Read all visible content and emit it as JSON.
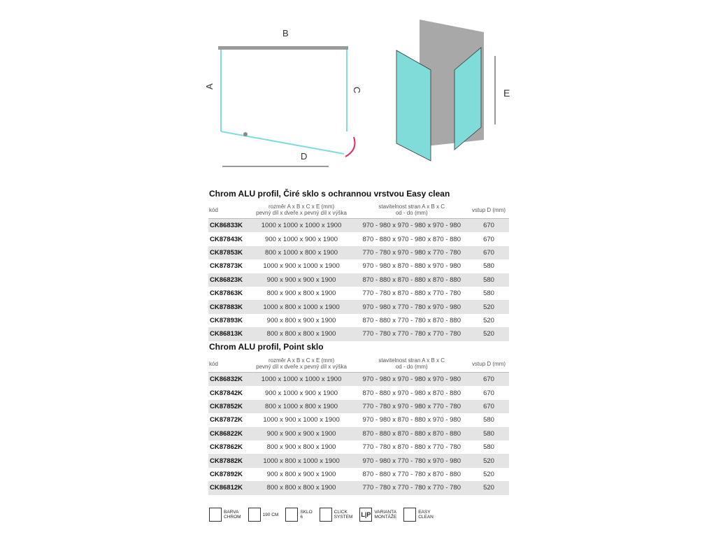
{
  "diagram": {
    "labels": {
      "a": "A",
      "b": "B",
      "c": "C",
      "d": "D",
      "e": "E"
    },
    "colors": {
      "glass": "#7fdcd8",
      "frame": "#9a9a9a",
      "arrow": "#e0305a",
      "wall": "#a8a8a8"
    }
  },
  "table1": {
    "title": "Chrom ALU profil, Čiré sklo s ochrannou vrstvou Easy clean",
    "headers": {
      "kod": "kód",
      "rozmer1": "rozměr A x B x C x E (mm)",
      "rozmer2": "pevný díl x dveře x pevný díl x výška",
      "stav1": "stavitelnost stran A x B x C",
      "stav2": "od - do (mm)",
      "vstup": "vstup D (mm)"
    },
    "rows": [
      [
        "CK86833K",
        "1000 x 1000 x 1000 x 1900",
        "970 - 980 x 970 - 980 x 970 - 980",
        "670"
      ],
      [
        "CK87843K",
        "900 x 1000 x 900 x 1900",
        "870 - 880 x 970 - 980 x 870 - 880",
        "670"
      ],
      [
        "CK87853K",
        "800 x 1000 x 800 x 1900",
        "770 - 780 x 970 - 980 x 770 - 780",
        "670"
      ],
      [
        "CK87873K",
        "1000 x 900 x 1000 x 1900",
        "970 - 980 x 870 - 880 x 970 - 980",
        "580"
      ],
      [
        "CK86823K",
        "900 x 900 x 900 x 1900",
        "870 - 880 x 870 - 880 x 870 - 880",
        "580"
      ],
      [
        "CK87863K",
        "800 x 900 x 800 x 1900",
        "770 - 780 x 870 - 880 x 770 - 780",
        "580"
      ],
      [
        "CK87883K",
        "1000 x 800 x 1000 x 1900",
        "970 - 980 x 770 - 780 x 970 - 980",
        "520"
      ],
      [
        "CK87893K",
        "900 x 800 x 900 x 1900",
        "870 - 880 x 770 - 780 x 870 - 880",
        "520"
      ],
      [
        "CK86813K",
        "800 x 800 x 800 x 1900",
        "770 - 780 x 770 - 780 x 770 - 780",
        "520"
      ]
    ]
  },
  "table2": {
    "title": "Chrom ALU profil, Point sklo",
    "headers": {
      "kod": "kód",
      "rozmer1": "rozměr A x B x C x E (mm)",
      "rozmer2": "pevný díl x dveře x pevný díl x výška",
      "stav1": "stavitelnost stran A x B x C",
      "stav2": "od - do (mm)",
      "vstup": "vstup D (mm)"
    },
    "rows": [
      [
        "CK86832K",
        "1000 x 1000 x 1000 x 1900",
        "970 - 980 x 970 - 980 x 970 - 980",
        "670"
      ],
      [
        "CK87842K",
        "900 x 1000 x 900 x 1900",
        "870 - 880 x 970 - 980 x 870 - 880",
        "670"
      ],
      [
        "CK87852K",
        "800 x 1000 x 800 x 1900",
        "770 - 780 x 970 - 980 x 770 - 780",
        "670"
      ],
      [
        "CK87872K",
        "1000 x 900 x 1000 x 1900",
        "970 - 980 x 870 - 880 x 970 - 980",
        "580"
      ],
      [
        "CK86822K",
        "900 x 900 x 900 x 1900",
        "870 - 880 x 870 - 880 x 870 - 880",
        "580"
      ],
      [
        "CK87862K",
        "800 x 900 x 800 x 1900",
        "770 - 780 x 870 - 880 x 770 - 780",
        "580"
      ],
      [
        "CK87882K",
        "1000 x 800 x 1000 x 1900",
        "970 - 980 x 770 - 780 x 970 - 980",
        "520"
      ],
      [
        "CK87892K",
        "900 x 800 x 900 x 1900",
        "870 - 880 x 770 - 780 x 870 - 880",
        "520"
      ],
      [
        "CK86812K",
        "800 x 800 x 800 x 1900",
        "770 - 780 x 770 - 780 x 770 - 780",
        "520"
      ]
    ]
  },
  "legend": [
    {
      "icon": "chrome-profile-icon",
      "l1": "BARVA",
      "l2": "CHROM"
    },
    {
      "icon": "height-icon",
      "l1": "190 CM",
      "l2": ""
    },
    {
      "icon": "glass-thickness-icon",
      "l1": "SKLO",
      "l2": "6"
    },
    {
      "icon": "click-system-icon",
      "l1": "CLICK",
      "l2": "SYSTEM"
    },
    {
      "icon": "lp-mounting-icon",
      "glyph": "L|P",
      "l1": "VARIANTA",
      "l2": "MONTÁŽE"
    },
    {
      "icon": "easy-clean-icon",
      "l1": "EASY",
      "l2": "CLEAN"
    }
  ]
}
